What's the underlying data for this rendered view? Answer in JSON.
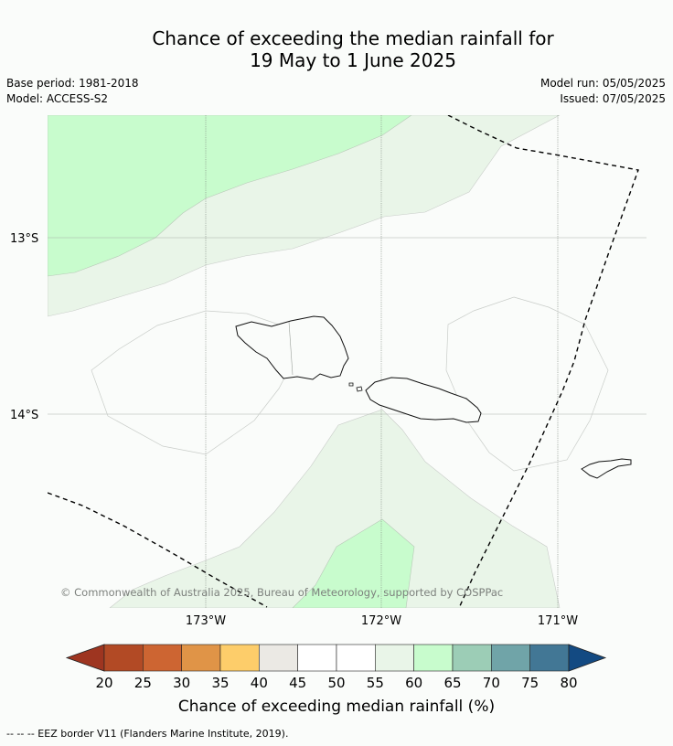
{
  "title": {
    "line1": "Chance of exceeding the median rainfall for",
    "line2": "19 May to 1 June 2025"
  },
  "meta": {
    "base_period": "Base period: 1981-2018",
    "model": "Model: ACCESS-S2",
    "model_run": "Model run: 05/05/2025",
    "issued": "Issued: 07/05/2025"
  },
  "map": {
    "lat_labels": [
      "13°S",
      "14°S"
    ],
    "lon_labels": [
      "173°W",
      "172°W",
      "171°W"
    ],
    "copyright": "© Commonwealth of Australia 2025, Bureau of Meteorology, supported by COSPPac"
  },
  "colorbar": {
    "ticks": [
      "20",
      "25",
      "30",
      "35",
      "40",
      "45",
      "50",
      "55",
      "60",
      "65",
      "70",
      "75",
      "80"
    ],
    "colors": [
      "#b24a25",
      "#cd6532",
      "#e09447",
      "#fdcd6a",
      "#ebe9e4",
      "#ffffff",
      "#ffffff",
      "#e9f5e8",
      "#c8fccd",
      "#9ccdb6",
      "#70a4a8",
      "#427795"
    ],
    "low_extend_color": "#9e3520",
    "high_extend_color": "#134a82",
    "label": "Chance of exceeding median rainfall (%)"
  },
  "footer": "--  --  -- EEZ border V11 (Flanders Marine Institute, 2019)."
}
